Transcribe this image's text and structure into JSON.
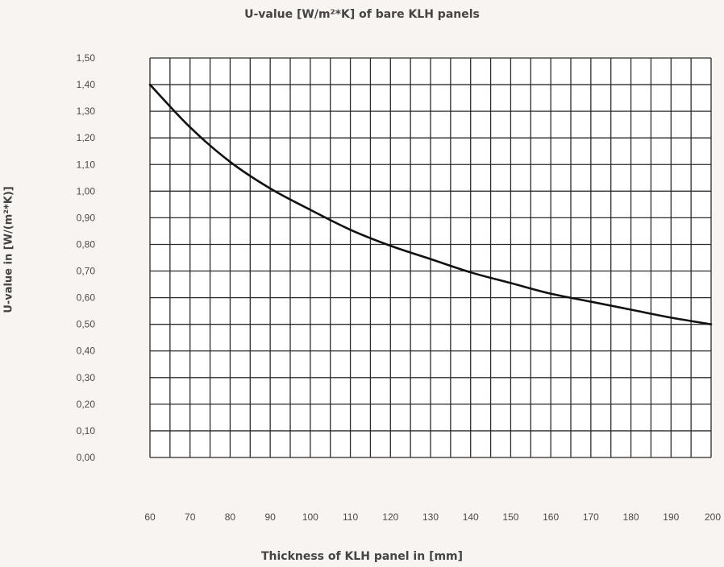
{
  "chart_data": {
    "type": "line",
    "title": "U-value [W/m²*K] of bare KLH panels",
    "xlabel": "Thickness of KLH panel in [mm]",
    "ylabel": "U-value in [W/(m²*K)]",
    "xlim": [
      60,
      200
    ],
    "ylim": [
      0,
      1.5
    ],
    "grid": true,
    "x_tick_labels": [
      "60",
      "70",
      "80",
      "90",
      "100",
      "110",
      "120",
      "130",
      "140",
      "150",
      "160",
      "170",
      "180",
      "190",
      "200"
    ],
    "y_tick_labels": [
      "0,00",
      "0,10",
      "0,20",
      "0,30",
      "0,40",
      "0,50",
      "0,60",
      "0,70",
      "0,80",
      "0,90",
      "1,00",
      "1,10",
      "1,20",
      "1,30",
      "1,40",
      "1,50"
    ],
    "series": [
      {
        "x": [
          60,
          70,
          80,
          90,
          100,
          110,
          120,
          130,
          140,
          150,
          160,
          170,
          180,
          190,
          200
        ],
        "y": [
          1.4,
          1.24,
          1.11,
          1.01,
          0.93,
          0.855,
          0.795,
          0.745,
          0.695,
          0.655,
          0.615,
          0.585,
          0.555,
          0.525,
          0.5
        ],
        "color": "#111111"
      }
    ]
  }
}
